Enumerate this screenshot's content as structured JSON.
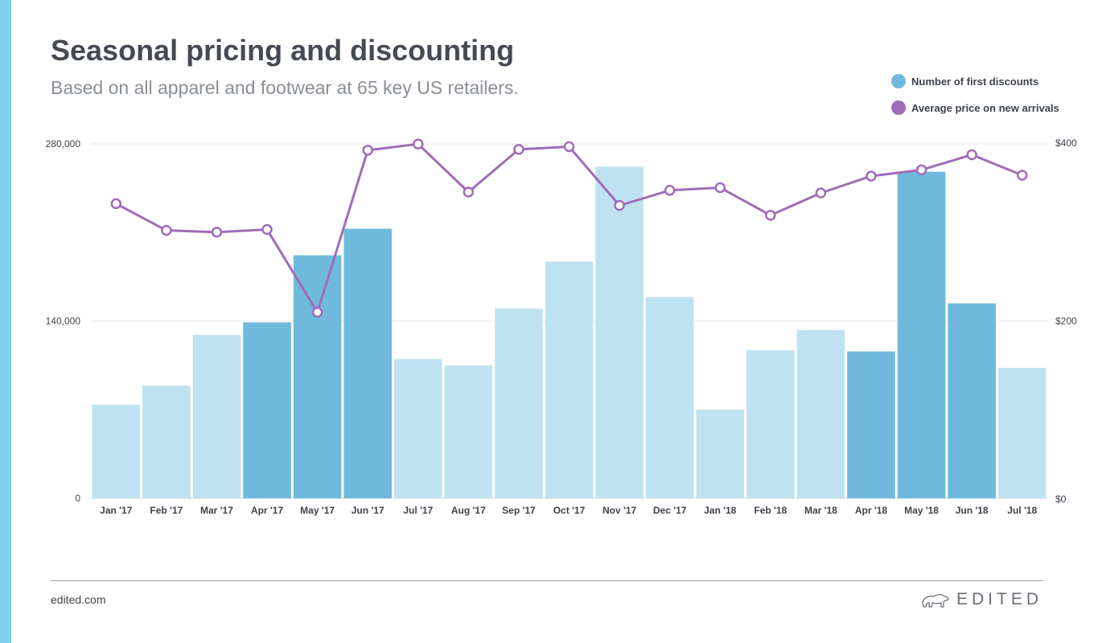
{
  "header": {
    "title": "Seasonal pricing and discounting",
    "subtitle": "Based on all apparel and footwear at 65 key US retailers."
  },
  "legend": {
    "items": [
      {
        "label": "Number of first discounts",
        "color": "#6fbadc"
      },
      {
        "label": "Average price on new arrivals",
        "color": "#a06cb8"
      }
    ]
  },
  "colors": {
    "accent": "#7ecff0",
    "bar_light": "#bfe2f2",
    "bar_dark": "#6fbadc",
    "line": "#a06cb8"
  },
  "footer": {
    "url": "edited.com",
    "brand": "EDITED",
    "brand_icon": "polar-bear-icon"
  },
  "chart_data": {
    "type": "bar",
    "categories": [
      "Jan '17",
      "Feb '17",
      "Mar '17",
      "Apr '17",
      "May '17",
      "Jun '17",
      "Jul '17",
      "Aug '17",
      "Sep '17",
      "Oct '17",
      "Nov '17",
      "Dec '17",
      "Jan '18",
      "Feb '18",
      "Mar '18",
      "Apr '18",
      "May '18",
      "Jun '18",
      "Jul '18"
    ],
    "series": [
      {
        "name": "Number of first discounts",
        "type": "bar",
        "axis": "left",
        "values": [
          74000,
          89000,
          129000,
          139000,
          192000,
          213000,
          110000,
          105000,
          150000,
          187000,
          262000,
          159000,
          70000,
          117000,
          133000,
          116000,
          258000,
          154000,
          103000
        ],
        "highlighted": [
          false,
          false,
          false,
          true,
          true,
          true,
          false,
          false,
          false,
          false,
          false,
          false,
          false,
          false,
          false,
          true,
          true,
          true,
          false
        ]
      },
      {
        "name": "Average price on new arrivals",
        "type": "line",
        "axis": "right",
        "values": [
          331,
          301,
          299,
          302,
          209,
          391,
          398,
          344,
          392,
          395,
          329,
          346,
          349,
          318,
          343,
          362,
          369,
          386,
          363
        ]
      }
    ],
    "y_left": {
      "ticks": [
        "0",
        "140,000",
        "280,000"
      ],
      "tick_values": [
        0,
        140000,
        280000
      ],
      "range": [
        0,
        280000
      ]
    },
    "y_right": {
      "ticks": [
        "$0",
        "$200",
        "$400"
      ],
      "tick_values": [
        0,
        200,
        400
      ],
      "range": [
        0,
        400
      ]
    },
    "grid": true,
    "legend_position": "top-right"
  }
}
